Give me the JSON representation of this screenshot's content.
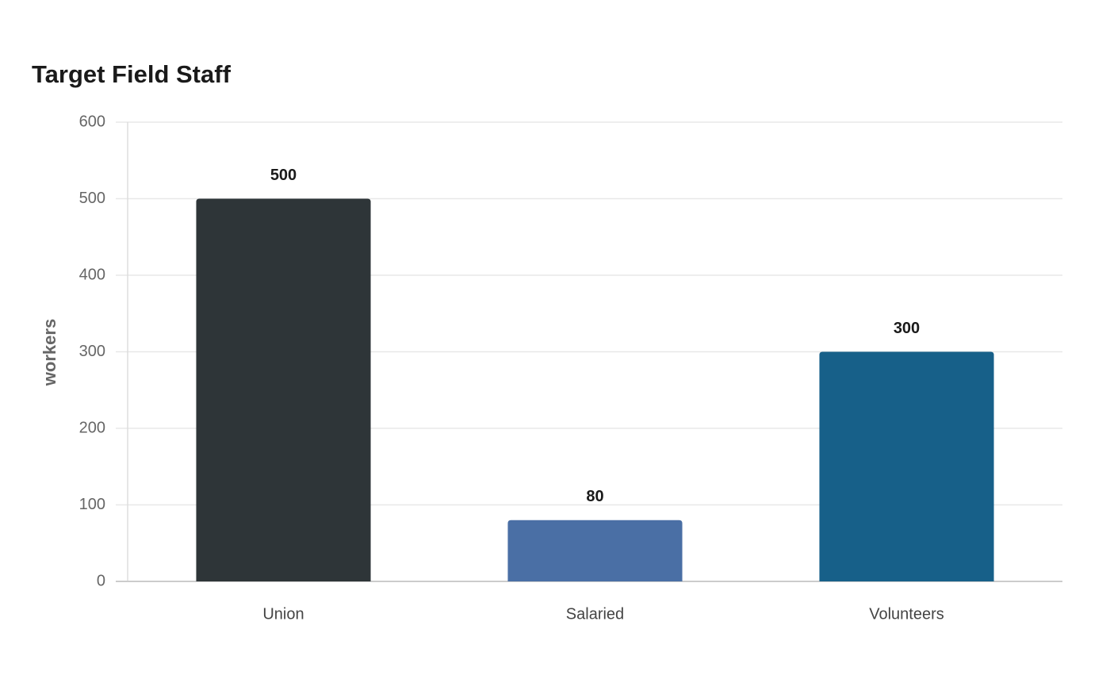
{
  "chart_data": {
    "type": "bar",
    "title": "Target Field Staff",
    "y_label": "workers",
    "categories": [
      "Union",
      "Salaried",
      "Volunteers"
    ],
    "values": [
      500,
      80,
      300
    ],
    "colors": [
      "#2e3538",
      "#4a6fa5",
      "#176089"
    ],
    "ylim": [
      0,
      600
    ],
    "yticks": [
      0,
      100,
      200,
      300,
      400,
      500,
      600
    ],
    "grid": true
  }
}
